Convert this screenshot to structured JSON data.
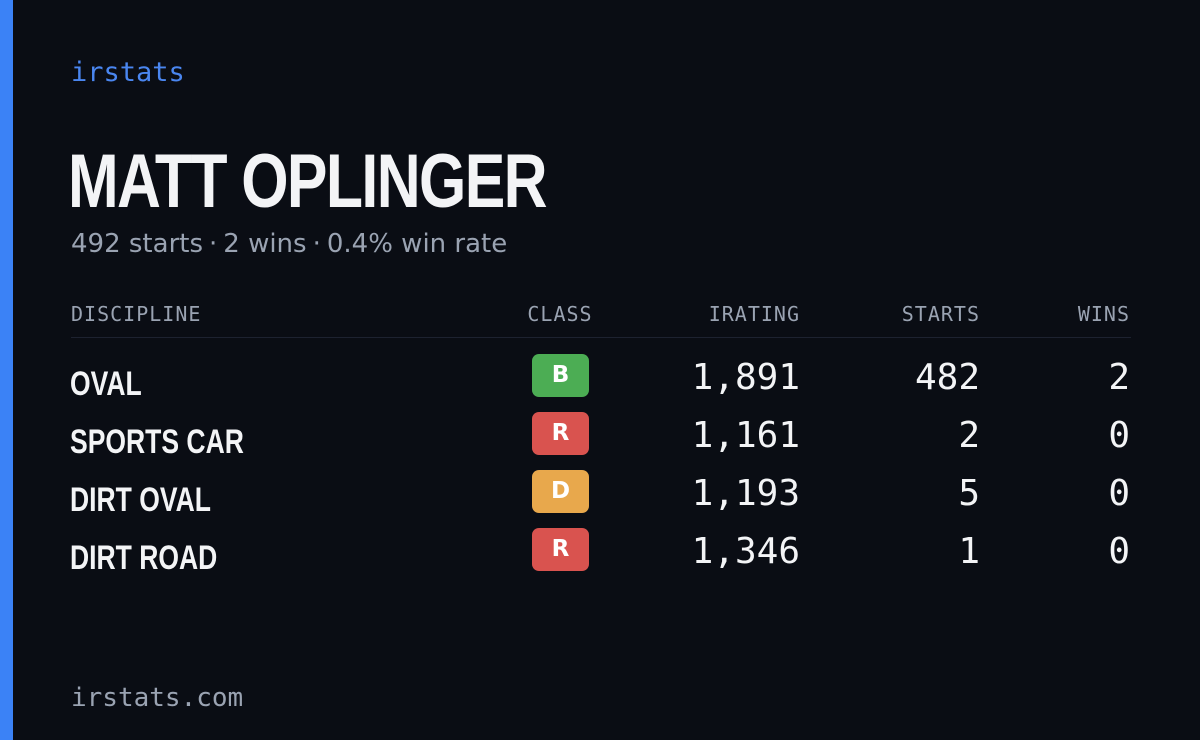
{
  "brand": "irstats",
  "driver": {
    "name": "MATT OPLINGER",
    "starts_text": "492 starts",
    "wins_text": "2 wins",
    "win_rate_text": "0.4% win rate",
    "separator": "·"
  },
  "table": {
    "headers": {
      "discipline": "DISCIPLINE",
      "class": "CLASS",
      "irating": "IRATING",
      "starts": "STARTS",
      "wins": "WINS"
    },
    "rows": [
      {
        "discipline": "OVAL",
        "class": "B",
        "class_color": "#4cad54",
        "irating": "1,891",
        "starts": "482",
        "wins": "2"
      },
      {
        "discipline": "SPORTS CAR",
        "class": "R",
        "class_color": "#d9534f",
        "irating": "1,161",
        "starts": "2",
        "wins": "0"
      },
      {
        "discipline": "DIRT OVAL",
        "class": "D",
        "class_color": "#e8a84c",
        "irating": "1,193",
        "starts": "5",
        "wins": "0"
      },
      {
        "discipline": "DIRT ROAD",
        "class": "R",
        "class_color": "#d9534f",
        "irating": "1,346",
        "starts": "1",
        "wins": "0"
      }
    ]
  },
  "footer": {
    "domain": "irstats.com"
  },
  "colors": {
    "accent": "#3b82f6",
    "background": "#0a0d14"
  }
}
